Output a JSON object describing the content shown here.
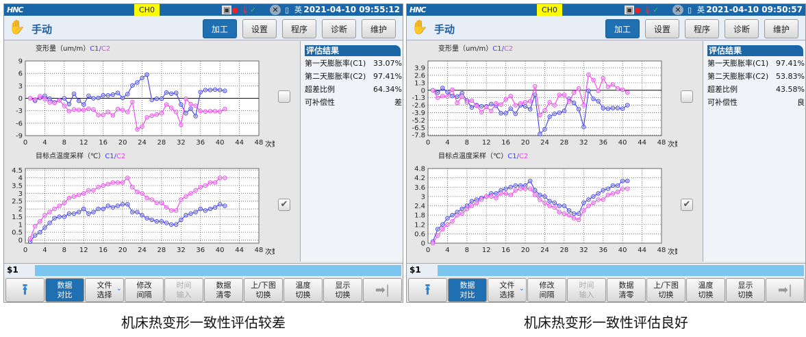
{
  "colors": {
    "c1": "#3c3cf0",
    "c2": "#f040f0",
    "title_bar": "#1a66a6",
    "channel_bg": "#ffff00",
    "command_bar": "#7cc5ee"
  },
  "panels": [
    {
      "title_bar": {
        "logo": "HNC",
        "channel": "CH0",
        "lang": "英",
        "datetime": "2021-04-10 09:55:12"
      },
      "mode": "手动",
      "tabs": [
        {
          "label": "加工",
          "active": true
        },
        {
          "label": "设置"
        },
        {
          "label": "程序"
        },
        {
          "label": "诊断"
        },
        {
          "label": "维护"
        }
      ],
      "checkboxes": [
        false,
        true
      ],
      "results": {
        "header": "评估结果",
        "rows": [
          {
            "label": "第一天膨胀率(C1)",
            "value": "33.07%"
          },
          {
            "label": "第二天膨胀率(C2)",
            "value": "97.41%"
          },
          {
            "label": "超差比例",
            "value": "64.34%"
          },
          {
            "label": "可补偿性",
            "value": "差"
          }
        ]
      },
      "status": {
        "prompt": "$1"
      },
      "caption": "机床热变形一致性评估较差"
    },
    {
      "title_bar": {
        "logo": "HNC",
        "channel": "CH0",
        "lang": "英",
        "datetime": "2021-04-10 09:50:57"
      },
      "mode": "手动",
      "tabs": [
        {
          "label": "加工",
          "active": true
        },
        {
          "label": "设置"
        },
        {
          "label": "程序"
        },
        {
          "label": "诊断"
        },
        {
          "label": "维护"
        }
      ],
      "checkboxes": [
        false,
        true
      ],
      "results": {
        "header": "评估结果",
        "rows": [
          {
            "label": "第一天膨胀率(C1)",
            "value": "97.41%"
          },
          {
            "label": "第二天膨胀率(C2)",
            "value": "53.83%"
          },
          {
            "label": "超差比例",
            "value": "43.58%"
          },
          {
            "label": "可补偿性",
            "value": "良"
          }
        ]
      },
      "status": {
        "prompt": "$1"
      },
      "caption": "机床热变形一致性评估良好"
    }
  ],
  "buttons": [
    {
      "icon": "up-arrow-icon",
      "label": ""
    },
    {
      "label": "数据\n对比",
      "active": true
    },
    {
      "label": "文件\n选择",
      "chevron": true
    },
    {
      "label": "修改\n间隔"
    },
    {
      "label": "时间\n输入",
      "disabled": true
    },
    {
      "label": "数据\n清零"
    },
    {
      "label": "上/下图\n切换"
    },
    {
      "label": "温度\n切换"
    },
    {
      "label": "显示\n切换"
    },
    {
      "icon": "next-end-icon",
      "label": ""
    }
  ],
  "chart_data": [
    {
      "type": "line",
      "title": "变形量（um/m）",
      "legend_c1": "C1",
      "legend_sep": "/",
      "legend_c2": "C2",
      "xlabel": "次数",
      "xlim": [
        0,
        48
      ],
      "xticks": [
        0,
        4,
        8,
        12,
        16,
        20,
        24,
        28,
        32,
        36,
        40,
        44,
        48
      ],
      "ylim": [
        -9,
        9
      ],
      "yticks": [
        -9,
        -6,
        -3,
        0,
        3,
        6,
        9
      ],
      "zero_line": true,
      "grid": true,
      "series": [
        {
          "name": "C1",
          "color": "#3c3cf0",
          "values": [
            0,
            -0.6,
            0.1,
            0.6,
            -0.1,
            -1.0,
            -0.4,
            0,
            -1.4,
            1.1,
            -0.6,
            -1.5,
            0.6,
            0,
            0.1,
            0.7,
            0.7,
            0.9,
            1.3,
            0.1,
            1.0,
            3.1,
            3.8,
            4.9,
            5.7,
            -0.4,
            -0.1,
            -0.1,
            1.4,
            1.1,
            1.3,
            -1.5,
            -3.6,
            -2.5,
            -4.3,
            1.5,
            2.0,
            2.0,
            2.1,
            2.0,
            1.8
          ]
        },
        {
          "name": "C2",
          "color": "#f040f0",
          "values": [
            0,
            -0.3,
            0.5,
            -0.2,
            -1.0,
            -1.1,
            -0.5,
            -1.8,
            -3.1,
            -2.7,
            -2.8,
            -2.8,
            -2.5,
            -2.7,
            -4.0,
            -4.0,
            -3.3,
            -4.1,
            -2.6,
            -2.8,
            -3.3,
            -0.9,
            -7.5,
            -6.8,
            -4.6,
            -4.2,
            -3.9,
            -3.6,
            -1.5,
            -2.3,
            -3.3,
            -6.4,
            -0.1,
            -1.4,
            -1.8,
            -3.1,
            -3.2,
            -3.1,
            -3.1,
            -3.2,
            -2.6
          ]
        }
      ]
    },
    {
      "type": "line",
      "title": "目标点温度采样（℃）",
      "legend_c1": "C1",
      "legend_sep": "/",
      "legend_c2": "C2",
      "xlabel": "次数",
      "xlim": [
        0,
        48
      ],
      "xticks": [
        0,
        4,
        8,
        12,
        16,
        20,
        24,
        28,
        32,
        36,
        40,
        44,
        48
      ],
      "ylim": [
        -0.2,
        4.6
      ],
      "yticks": [
        0,
        0.5,
        1,
        1.5,
        2,
        2.5,
        3,
        3.5,
        4,
        4.5
      ],
      "zero_line": false,
      "grid": true,
      "series": [
        {
          "name": "C1",
          "color": "#3c3cf0",
          "values": [
            -0.1,
            0.3,
            0.5,
            0.8,
            1.1,
            1.4,
            1.5,
            1.5,
            1.7,
            1.7,
            1.8,
            2.0,
            1.7,
            1.8,
            2.0,
            2.0,
            2.2,
            2.1,
            2.2,
            2.3,
            2.3,
            1.8,
            1.8,
            1.6,
            1.4,
            1.3,
            1.2,
            1.2,
            1.1,
            1.0,
            1.0,
            1.3,
            1.6,
            1.7,
            1.8,
            2.0,
            1.9,
            2.0,
            2.1,
            2.3,
            2.2
          ]
        },
        {
          "name": "C2",
          "color": "#f040f0",
          "values": [
            0.1,
            0.9,
            1.2,
            1.6,
            1.8,
            2.0,
            2.2,
            2.4,
            2.7,
            2.8,
            2.9,
            3.0,
            3.2,
            3.2,
            3.4,
            3.5,
            3.6,
            3.7,
            3.7,
            3.7,
            4.0,
            3.4,
            3.1,
            3.0,
            2.7,
            2.6,
            2.4,
            2.4,
            2.1,
            1.9,
            1.9,
            2.6,
            2.8,
            3.0,
            3.2,
            3.4,
            3.5,
            3.7,
            3.7,
            4.0,
            4.0
          ]
        }
      ]
    },
    {
      "type": "line",
      "title": "变形量（um/m）",
      "legend_c1": "C1",
      "legend_sep": "/",
      "legend_c2": "C2",
      "xlabel": "次数",
      "xlim": [
        0,
        48
      ],
      "xticks": [
        0,
        4,
        8,
        12,
        16,
        20,
        24,
        28,
        32,
        36,
        40,
        44,
        48
      ],
      "ylim": [
        -7.9,
        5.1
      ],
      "yticks": [
        -7.8,
        -6.5,
        -5.2,
        -3.9,
        -2.6,
        -1.3,
        0,
        1.3,
        2.6,
        3.9
      ],
      "zero_line": true,
      "grid": true,
      "series": [
        {
          "name": "C1",
          "color": "#3c3cf0",
          "values": [
            0,
            -0.4,
            0.4,
            -0.3,
            -1.0,
            -1.1,
            -0.5,
            -1.8,
            -3.0,
            -2.6,
            -2.8,
            -2.8,
            -2.4,
            -2.7,
            -4.0,
            -4.0,
            -3.2,
            -4.1,
            -2.6,
            -2.8,
            -3.3,
            -0.8,
            -7.6,
            -6.8,
            -4.6,
            -4.1,
            -3.9,
            -3.6,
            -1.5,
            -2.2,
            -3.3,
            -6.4,
            -0.1,
            -1.5,
            -1.9,
            -3.1,
            -3.2,
            -3.1,
            -3.1,
            -3.2,
            -2.6
          ]
        },
        {
          "name": "C2",
          "color": "#f040f0",
          "values": [
            0,
            -1.3,
            -1.0,
            -1.1,
            0.1,
            -2.2,
            -1.1,
            -2.1,
            -1.8,
            -2.7,
            -3.8,
            -2.9,
            -3.6,
            -2.3,
            -2.5,
            -1.6,
            -1.0,
            -2.6,
            -2.3,
            -2.1,
            -1.9,
            0.7,
            -4.3,
            -3.5,
            -2.1,
            -2.6,
            -0.8,
            -0.8,
            -2.0,
            -0.4,
            0.3,
            -2.6,
            2.7,
            1.8,
            -0.1,
            2.1,
            0.6,
            1.0,
            0.3,
            0.1,
            -0.4
          ]
        }
      ]
    },
    {
      "type": "line",
      "title": "目标点温度采样（℃）",
      "legend_c1": "C1",
      "legend_sep": "/",
      "legend_c2": "C2",
      "xlabel": "次数",
      "xlim": [
        0,
        48
      ],
      "xticks": [
        0,
        4,
        8,
        12,
        16,
        20,
        24,
        28,
        32,
        36,
        40,
        44,
        48
      ],
      "ylim": [
        0,
        4.8
      ],
      "yticks": [
        0,
        0.6,
        1.2,
        1.8,
        2.4,
        3,
        3.6,
        4.2,
        4.8
      ],
      "zero_line": false,
      "grid": true,
      "series": [
        {
          "name": "C1",
          "color": "#3c3cf0",
          "values": [
            0.1,
            0.9,
            1.2,
            1.6,
            1.8,
            2.0,
            2.2,
            2.4,
            2.7,
            2.8,
            2.9,
            3.0,
            3.2,
            3.2,
            3.4,
            3.5,
            3.6,
            3.7,
            3.7,
            3.7,
            4.0,
            3.4,
            3.1,
            3.0,
            2.7,
            2.6,
            2.4,
            2.4,
            2.1,
            1.9,
            1.9,
            2.6,
            2.8,
            3.0,
            3.2,
            3.4,
            3.5,
            3.7,
            3.7,
            4.0,
            4.0
          ]
        },
        {
          "name": "C2",
          "color": "#f040f0",
          "values": [
            0,
            0.5,
            0.9,
            1.2,
            1.4,
            1.8,
            1.9,
            2.2,
            2.4,
            2.6,
            2.8,
            3.0,
            3.0,
            2.9,
            3.2,
            3.2,
            3.1,
            3.4,
            3.5,
            3.5,
            3.5,
            3.1,
            2.8,
            2.6,
            2.4,
            2.3,
            2.0,
            1.9,
            1.8,
            1.6,
            1.5,
            2.1,
            2.4,
            2.6,
            2.8,
            2.8,
            3.1,
            3.2,
            3.3,
            3.5,
            3.5
          ]
        }
      ]
    }
  ]
}
